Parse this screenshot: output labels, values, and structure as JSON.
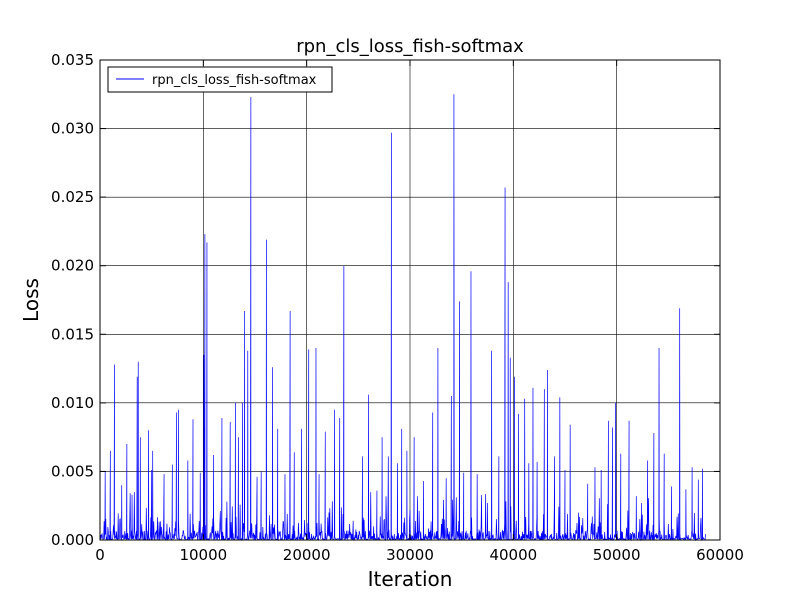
{
  "chart_data": {
    "type": "line",
    "title": "rpn_cls_loss_fish-softmax",
    "xlabel": "Iteration",
    "ylabel": "Loss",
    "xlim": [
      0,
      60000
    ],
    "ylim": [
      0,
      0.035
    ],
    "xticks": [
      0,
      10000,
      20000,
      30000,
      40000,
      50000,
      60000
    ],
    "xtick_labels": [
      "0",
      "10000",
      "20000",
      "30000",
      "40000",
      "50000",
      "60000"
    ],
    "yticks": [
      0,
      0.005,
      0.01,
      0.015,
      0.02,
      0.025,
      0.03,
      0.035
    ],
    "ytick_labels": [
      "0.000",
      "0.005",
      "0.010",
      "0.015",
      "0.020",
      "0.025",
      "0.030",
      "0.035"
    ],
    "grid": true,
    "legend_position": "top-left",
    "series": [
      {
        "name": "rpn_cls_loss_fish-softmax",
        "color": "#0000ff",
        "spikes": [
          [
            500,
            0.005
          ],
          [
            1000,
            0.0065
          ],
          [
            1400,
            0.0128
          ],
          [
            2100,
            0.004
          ],
          [
            2600,
            0.007
          ],
          [
            3100,
            0.0033
          ],
          [
            3600,
            0.0119
          ],
          [
            3700,
            0.013
          ],
          [
            3900,
            0.0075
          ],
          [
            4700,
            0.008
          ],
          [
            5000,
            0.0051
          ],
          [
            5100,
            0.0065
          ],
          [
            6200,
            0.0048
          ],
          [
            7000,
            0.0055
          ],
          [
            7400,
            0.0093
          ],
          [
            7600,
            0.0095
          ],
          [
            8500,
            0.0058
          ],
          [
            9000,
            0.0088
          ],
          [
            9700,
            0.0049
          ],
          [
            10050,
            0.0135
          ],
          [
            10150,
            0.0223
          ],
          [
            10350,
            0.0217
          ],
          [
            11000,
            0.0062
          ],
          [
            11800,
            0.0089
          ],
          [
            12600,
            0.0086
          ],
          [
            13100,
            0.01
          ],
          [
            13400,
            0.0075
          ],
          [
            13800,
            0.01
          ],
          [
            14000,
            0.0167
          ],
          [
            14300,
            0.0138
          ],
          [
            14600,
            0.0323
          ],
          [
            15200,
            0.0046
          ],
          [
            15600,
            0.005
          ],
          [
            16100,
            0.0219
          ],
          [
            16700,
            0.0126
          ],
          [
            17200,
            0.0081
          ],
          [
            17900,
            0.0048
          ],
          [
            18400,
            0.0167
          ],
          [
            18800,
            0.0064
          ],
          [
            19500,
            0.0081
          ],
          [
            20200,
            0.0139
          ],
          [
            20900,
            0.014
          ],
          [
            21200,
            0.0048
          ],
          [
            21800,
            0.0079
          ],
          [
            22700,
            0.0095
          ],
          [
            23200,
            0.0089
          ],
          [
            23600,
            0.02
          ],
          [
            24500,
            0.0014
          ],
          [
            25400,
            0.0061
          ],
          [
            26000,
            0.0106
          ],
          [
            26800,
            0.0036
          ],
          [
            27300,
            0.0075
          ],
          [
            27900,
            0.0061
          ],
          [
            28200,
            0.0297
          ],
          [
            28800,
            0.0056
          ],
          [
            29200,
            0.0081
          ],
          [
            29700,
            0.0065
          ],
          [
            30400,
            0.0075
          ],
          [
            31300,
            0.0043
          ],
          [
            32200,
            0.0093
          ],
          [
            32700,
            0.014
          ],
          [
            33500,
            0.0045
          ],
          [
            34000,
            0.0105
          ],
          [
            34250,
            0.0325
          ],
          [
            34800,
            0.0174
          ],
          [
            35200,
            0.0049
          ],
          [
            35900,
            0.0196
          ],
          [
            36500,
            0.0048
          ],
          [
            37500,
            0.0027
          ],
          [
            37900,
            0.0138
          ],
          [
            38600,
            0.0061
          ],
          [
            39200,
            0.0257
          ],
          [
            39500,
            0.0188
          ],
          [
            39700,
            0.0133
          ],
          [
            40100,
            0.0119
          ],
          [
            40500,
            0.0092
          ],
          [
            41100,
            0.0103
          ],
          [
            41500,
            0.0056
          ],
          [
            41900,
            0.0111
          ],
          [
            42300,
            0.0057
          ],
          [
            43000,
            0.011
          ],
          [
            43300,
            0.0124
          ],
          [
            44000,
            0.0061
          ],
          [
            44500,
            0.0104
          ],
          [
            45000,
            0.0051
          ],
          [
            45500,
            0.0084
          ],
          [
            46300,
            0.002
          ],
          [
            47200,
            0.0041
          ],
          [
            47900,
            0.0053
          ],
          [
            48500,
            0.0051
          ],
          [
            49200,
            0.0087
          ],
          [
            49600,
            0.0082
          ],
          [
            49900,
            0.01
          ],
          [
            50400,
            0.0063
          ],
          [
            51200,
            0.0087
          ],
          [
            51900,
            0.0032
          ],
          [
            52400,
            0.0027
          ],
          [
            53000,
            0.0058
          ],
          [
            53600,
            0.0078
          ],
          [
            54100,
            0.014
          ],
          [
            54600,
            0.0063
          ],
          [
            55300,
            0.0039
          ],
          [
            56100,
            0.0169
          ],
          [
            56700,
            0.0037
          ],
          [
            57300,
            0.0053
          ],
          [
            57900,
            0.0044
          ],
          [
            58300,
            0.0052
          ]
        ]
      }
    ]
  }
}
